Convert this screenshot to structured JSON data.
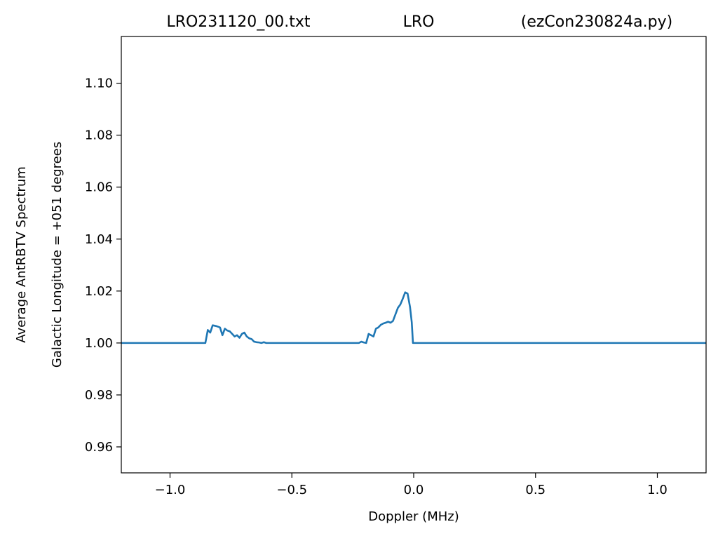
{
  "chart_data": {
    "type": "line",
    "title_parts": [
      "LRO231120_00.txt",
      "LRO",
      "(ezCon230824a.py)"
    ],
    "xlabel": "Doppler (MHz)",
    "ylabel_lines": [
      "Average AntRBTV Spectrum",
      "Galactic Longitude = +051 degrees"
    ],
    "xlim": [
      -1.2,
      1.2
    ],
    "ylim": [
      0.95,
      1.118
    ],
    "xticks": [
      -1.0,
      -0.5,
      0.0,
      0.5,
      1.0
    ],
    "xtick_labels": [
      "−1.0",
      "−0.5",
      "0.0",
      "0.5",
      "1.0"
    ],
    "yticks": [
      0.96,
      0.98,
      1.0,
      1.02,
      1.04,
      1.06,
      1.08,
      1.1
    ],
    "ytick_labels": [
      "0.96",
      "0.98",
      "1.00",
      "1.02",
      "1.04",
      "1.06",
      "1.08",
      "1.10"
    ],
    "grid": false,
    "line_color": "#1f77b4",
    "series": [
      {
        "x": [
          -1.2,
          -0.855,
          -0.845,
          -0.835,
          -0.825,
          -0.81,
          -0.795,
          -0.785,
          -0.775,
          -0.765,
          -0.755,
          -0.745,
          -0.735,
          -0.725,
          -0.715,
          -0.705,
          -0.695,
          -0.685,
          -0.675,
          -0.665,
          -0.655,
          -0.645,
          -0.635,
          -0.625,
          -0.615,
          -0.605,
          -0.595,
          -0.585,
          -0.575,
          -0.565,
          -0.555,
          -0.5,
          -0.3,
          -0.225,
          -0.215,
          -0.205,
          -0.195,
          -0.185,
          -0.175,
          -0.165,
          -0.155,
          -0.145,
          -0.135,
          -0.125,
          -0.115,
          -0.105,
          -0.095,
          -0.085,
          -0.075,
          -0.065,
          -0.055,
          -0.045,
          -0.035,
          -0.025,
          -0.015,
          -0.008,
          -0.003,
          0.0,
          0.5,
          1.2
        ],
        "y": [
          1.0,
          1.0,
          1.005,
          1.004,
          1.0068,
          1.0065,
          1.006,
          1.003,
          1.0055,
          1.0048,
          1.0045,
          1.0035,
          1.0025,
          1.003,
          1.002,
          1.0035,
          1.004,
          1.0025,
          1.0018,
          1.0015,
          1.0005,
          1.0003,
          1.0002,
          1.0,
          1.0003,
          1.0,
          1.0,
          1.0,
          1.0,
          1.0,
          1.0,
          1.0,
          1.0,
          1.0,
          1.0005,
          1.0002,
          1.0,
          1.0035,
          1.003,
          1.0025,
          1.0055,
          1.006,
          1.007,
          1.0075,
          1.0078,
          1.0082,
          1.0078,
          1.0085,
          1.011,
          1.0135,
          1.0148,
          1.017,
          1.0195,
          1.019,
          1.0138,
          1.008,
          1.0,
          1.0,
          1.0,
          1.0
        ]
      }
    ]
  }
}
